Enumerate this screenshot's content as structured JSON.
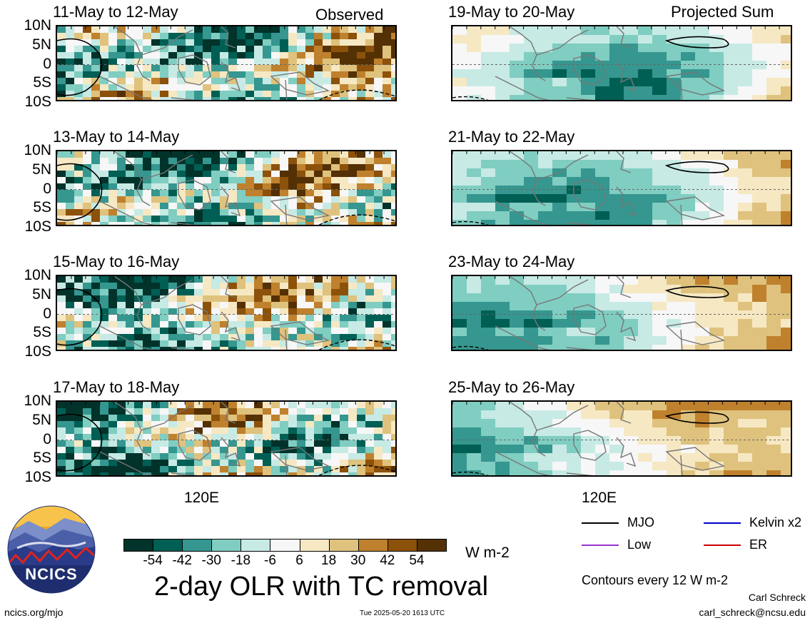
{
  "observed_label": "Observed",
  "projected_label": "Projected Sum",
  "lat_labels": [
    "10N",
    "5N",
    "0",
    "5S",
    "10S"
  ],
  "lon_label": "120E",
  "panels": [
    {
      "id": "obs1",
      "column": "observed",
      "title": "11-May to 12-May"
    },
    {
      "id": "obs2",
      "column": "observed",
      "title": "13-May to 14-May"
    },
    {
      "id": "obs3",
      "column": "observed",
      "title": "15-May to 16-May"
    },
    {
      "id": "obs4",
      "column": "observed",
      "title": "17-May to 18-May"
    },
    {
      "id": "prj1",
      "column": "projected",
      "title": "19-May to 20-May"
    },
    {
      "id": "prj2",
      "column": "projected",
      "title": "21-May to 22-May"
    },
    {
      "id": "prj3",
      "column": "projected",
      "title": "23-May to 24-May"
    },
    {
      "id": "prj4",
      "column": "projected",
      "title": "25-May to 26-May"
    }
  ],
  "colorbar": {
    "ticks": [
      "-54",
      "-42",
      "-30",
      "-18",
      "-6",
      "6",
      "18",
      "30",
      "42",
      "54"
    ],
    "unit": "W m-2",
    "colors": [
      "#01332b",
      "#005f54",
      "#35978f",
      "#80cdc1",
      "#c7eae5",
      "#f7f7f7",
      "#f6e8c3",
      "#dfc27d",
      "#bf812d",
      "#8c510a",
      "#543005"
    ]
  },
  "main_title": "2-day OLR with TC removal",
  "legend": {
    "items": [
      {
        "label": "MJO",
        "color": "#000000"
      },
      {
        "label": "Kelvin x2",
        "color": "#0000cc"
      },
      {
        "label": "Low",
        "color": "#9933cc"
      },
      {
        "label": "ER",
        "color": "#cc0000"
      }
    ],
    "contour_note": "Contours every 12 W m-2"
  },
  "logo_text": "NCICS",
  "website": "ncics.org/mjo",
  "timestamp": "Tue 2025-05-20 1613 UTC",
  "author_name": "Carl Schreck",
  "author_email": "carl_schreck@ncsu.edu"
}
